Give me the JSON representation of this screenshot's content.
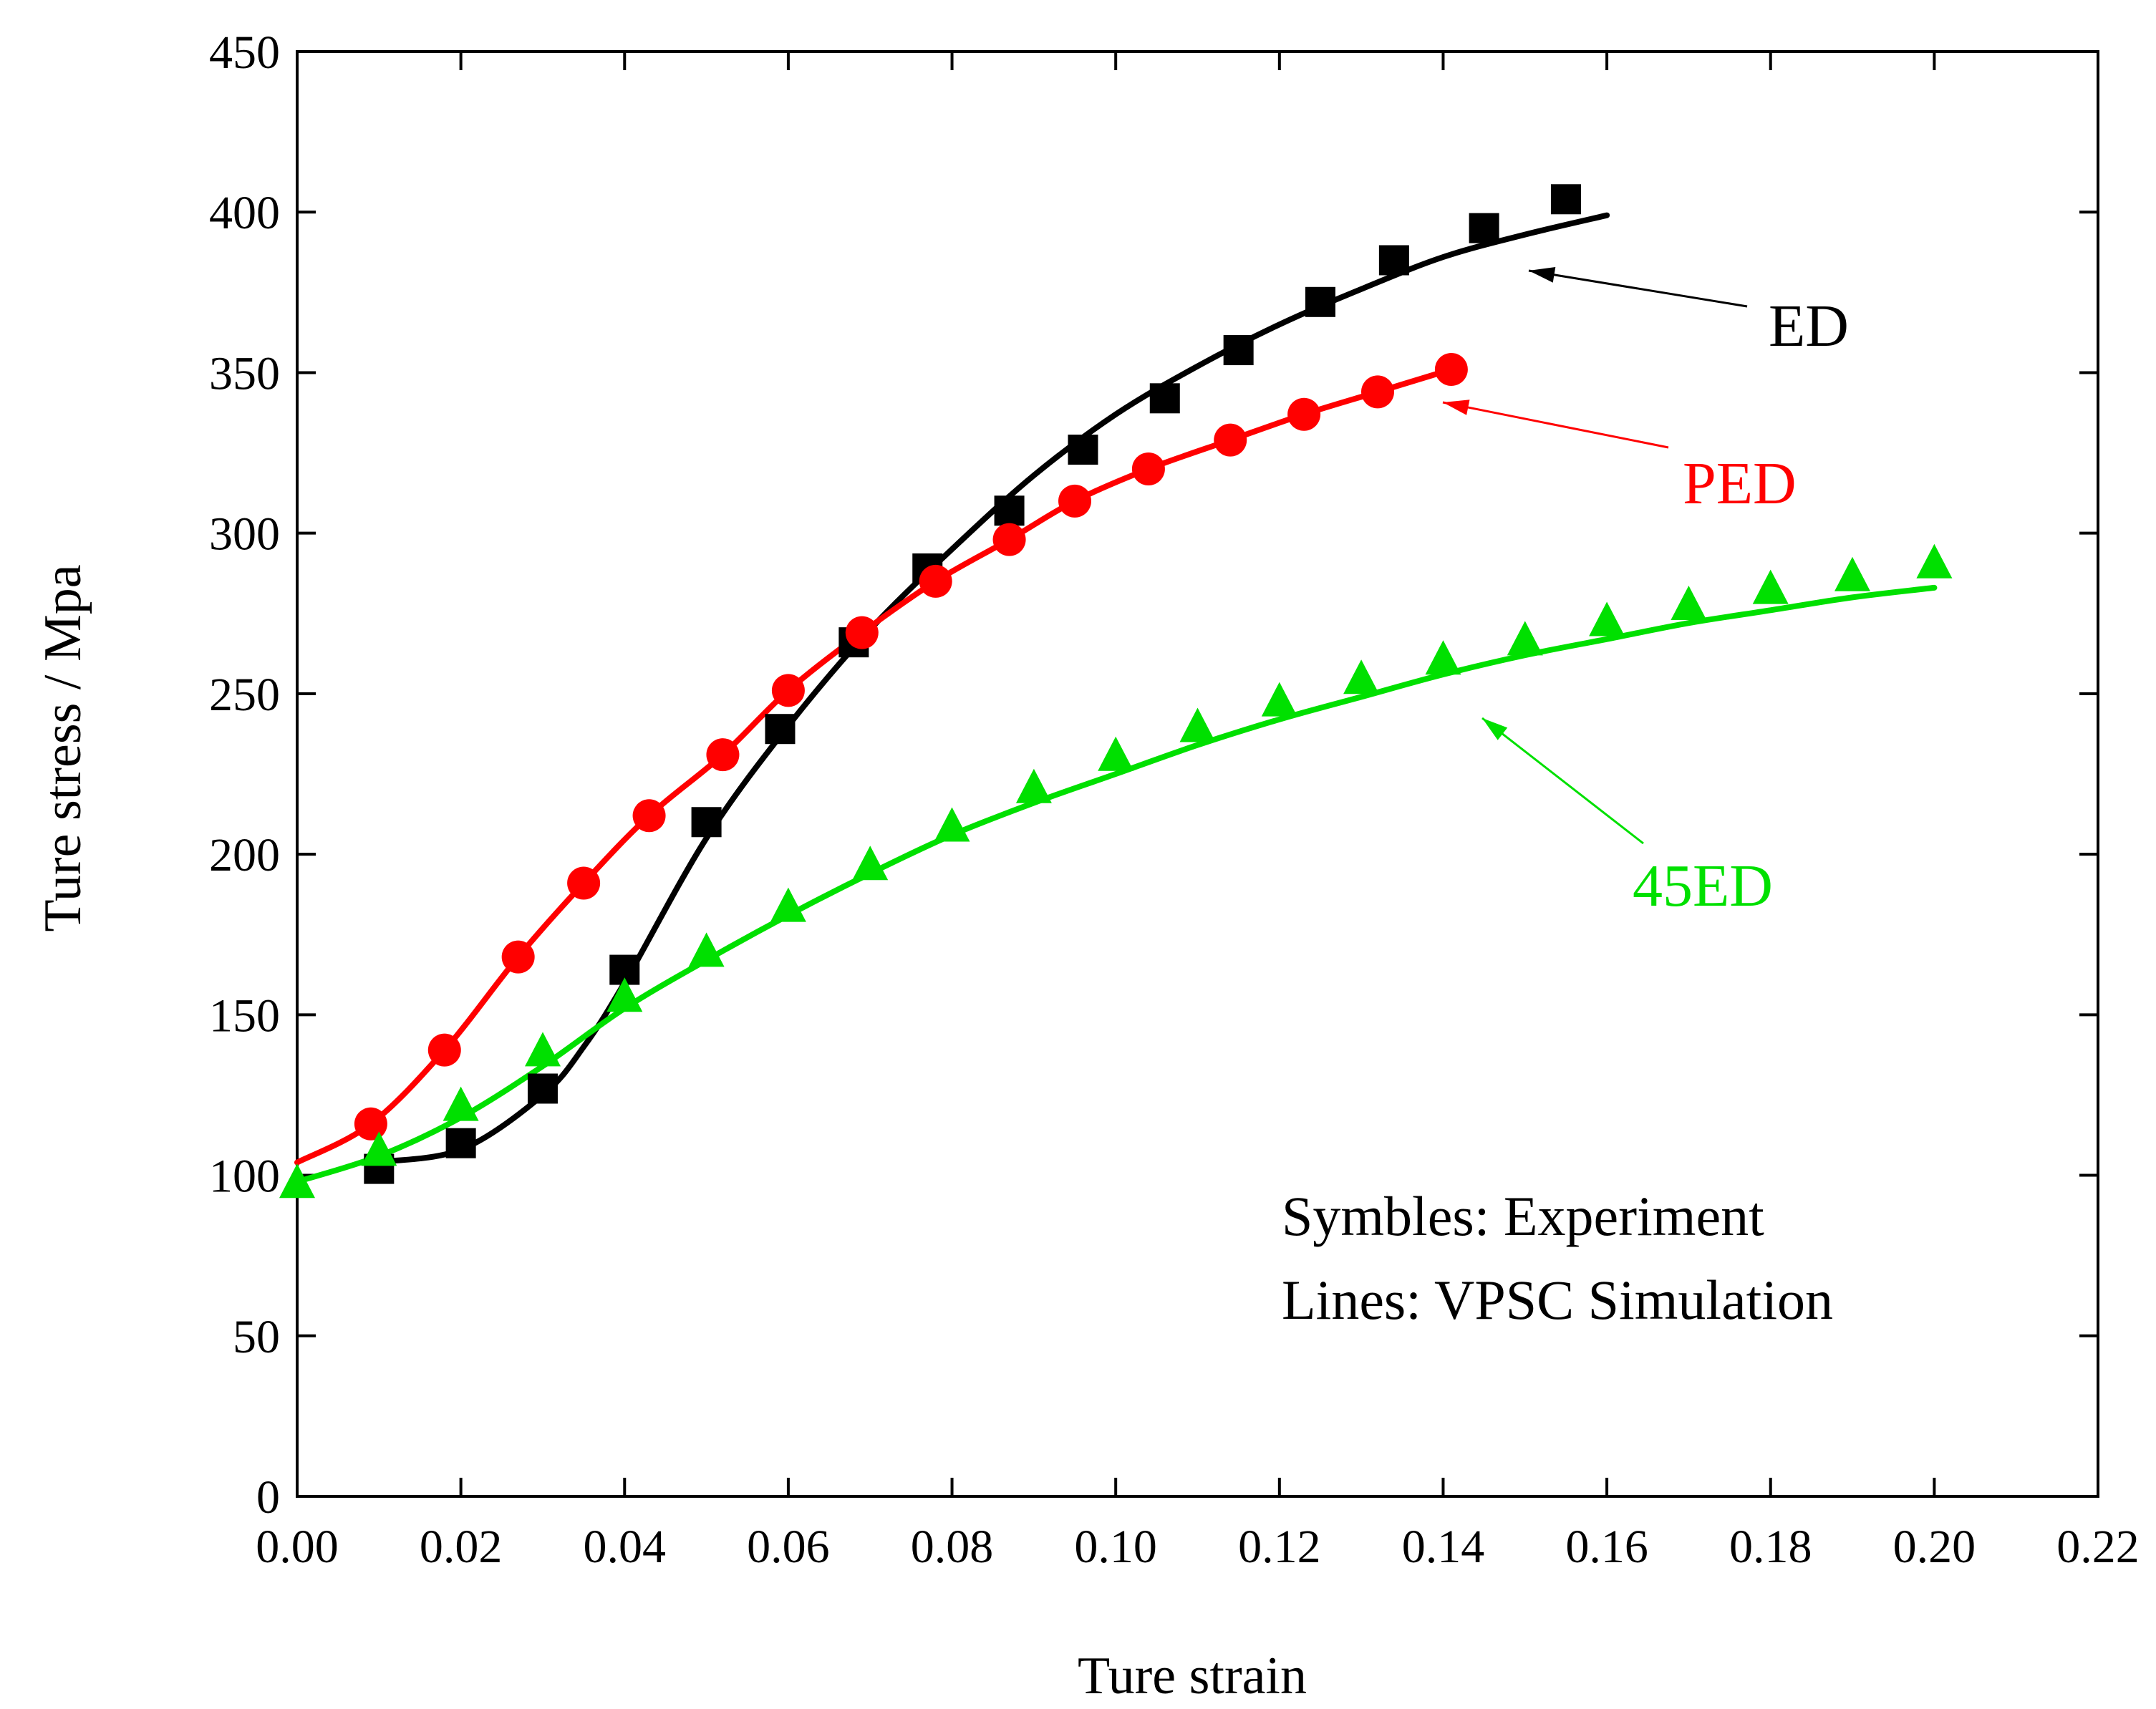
{
  "chart_data": {
    "type": "line",
    "title": "",
    "xlabel": "Ture strain",
    "ylabel": "Ture stress / Mpa",
    "xlim": [
      0,
      0.22
    ],
    "ylim": [
      0,
      450
    ],
    "xticks": [
      "0.00",
      "0.02",
      "0.04",
      "0.06",
      "0.08",
      "0.10",
      "0.12",
      "0.14",
      "0.16",
      "0.18",
      "0.20",
      "0.22"
    ],
    "yticks": [
      "0",
      "50",
      "100",
      "150",
      "200",
      "250",
      "300",
      "350",
      "400",
      "450"
    ],
    "grid": false,
    "annotations": {
      "symbols_note": "Symbles: Experiment",
      "lines_note": "Lines: VPSC Simulation"
    },
    "series": [
      {
        "name": "ED",
        "color": "#000000",
        "marker": "square",
        "experiment": {
          "x": [
            0.01,
            0.02,
            0.03,
            0.04,
            0.05,
            0.059,
            0.068,
            0.077,
            0.087,
            0.096,
            0.106,
            0.115,
            0.125,
            0.134,
            0.145,
            0.155
          ],
          "y": [
            102,
            110,
            127,
            164,
            210,
            239,
            266,
            289,
            307,
            326,
            342,
            357,
            372,
            385,
            395,
            404
          ]
        },
        "simulation": {
          "x": [
            0.009,
            0.02,
            0.03,
            0.035,
            0.04,
            0.05,
            0.06,
            0.07,
            0.08,
            0.09,
            0.1,
            0.11,
            0.12,
            0.13,
            0.14,
            0.15,
            0.16
          ],
          "y": [
            104,
            108,
            125,
            140,
            160,
            205,
            240,
            270,
            295,
            318,
            337,
            352,
            365,
            376,
            386,
            393,
            399
          ]
        }
      },
      {
        "name": "PED",
        "color": "#ff0000",
        "marker": "circle",
        "experiment": {
          "x": [
            0.009,
            0.018,
            0.027,
            0.035,
            0.043,
            0.052,
            0.06,
            0.069,
            0.078,
            0.087,
            0.095,
            0.104,
            0.114,
            0.123,
            0.132,
            0.141
          ],
          "y": [
            116,
            139,
            168,
            191,
            212,
            231,
            251,
            269,
            285,
            298,
            310,
            320,
            329,
            337,
            344,
            351
          ]
        },
        "simulation": {
          "x": [
            0.0,
            0.009,
            0.018,
            0.027,
            0.035,
            0.043,
            0.052,
            0.06,
            0.069,
            0.078,
            0.087,
            0.095,
            0.104,
            0.114,
            0.123,
            0.132,
            0.141
          ],
          "y": [
            104,
            116,
            139,
            168,
            191,
            212,
            231,
            251,
            269,
            285,
            298,
            310,
            320,
            329,
            337,
            344,
            351
          ]
        }
      },
      {
        "name": "45ED",
        "color": "#00e000",
        "marker": "triangle",
        "experiment": {
          "x": [
            0.0,
            0.01,
            0.02,
            0.03,
            0.04,
            0.05,
            0.06,
            0.07,
            0.08,
            0.09,
            0.1,
            0.11,
            0.12,
            0.13,
            0.14,
            0.15,
            0.16,
            0.17,
            0.18,
            0.19,
            0.2
          ],
          "y": [
            97,
            107,
            121,
            138,
            155,
            169,
            183,
            196,
            208,
            220,
            230,
            239,
            247,
            254,
            260,
            266,
            272,
            277,
            282,
            286,
            290
          ]
        },
        "simulation": {
          "x": [
            0.0,
            0.01,
            0.02,
            0.03,
            0.04,
            0.05,
            0.06,
            0.07,
            0.08,
            0.09,
            0.1,
            0.11,
            0.12,
            0.13,
            0.14,
            0.15,
            0.16,
            0.17,
            0.18,
            0.19,
            0.2
          ],
          "y": [
            98,
            106,
            118,
            134,
            152,
            167,
            181,
            194,
            206,
            216,
            225,
            234,
            242,
            249,
            256,
            262,
            267,
            272,
            276,
            280,
            283
          ]
        }
      }
    ]
  }
}
